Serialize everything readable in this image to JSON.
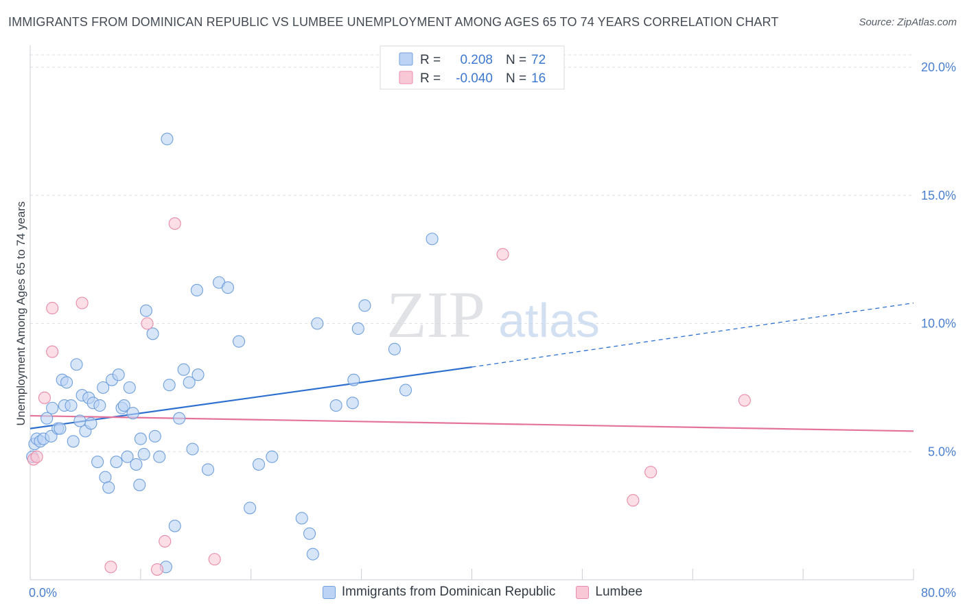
{
  "header": {
    "title": "IMMIGRANTS FROM DOMINICAN REPUBLIC VS LUMBEE UNEMPLOYMENT AMONG AGES 65 TO 74 YEARS CORRELATION CHART",
    "source": "Source: ZipAtlas.com"
  },
  "watermark": {
    "zip": "ZIP",
    "atlas": "atlas"
  },
  "colors": {
    "blue_fill": "#bcd3f5",
    "blue_stroke": "#6f9fdc",
    "blue_line": "#2c6fcf",
    "pink_fill": "#f8c8d6",
    "pink_stroke": "#e88aa8",
    "pink_line": "#e4739a",
    "axis_text": "#4a7fd0",
    "grid": "#dcdfe4"
  },
  "stats_legend": {
    "rows": [
      {
        "r_label": "R =",
        "r_value": "0.208",
        "n_label": "N =",
        "n_value": "72"
      },
      {
        "r_label": "R =",
        "r_value": "-0.040",
        "n_label": "N =",
        "n_value": "16"
      }
    ]
  },
  "bottom_legend": {
    "items": [
      {
        "label": "Immigrants from Dominican Republic"
      },
      {
        "label": "Lumbee"
      }
    ]
  },
  "chart_data": {
    "type": "scatter",
    "title": "IMMIGRANTS FROM DOMINICAN REPUBLIC VS LUMBEE UNEMPLOYMENT AMONG AGES 65 TO 74 YEARS CORRELATION CHART",
    "xlabel": "",
    "ylabel": "Unemployment Among Ages 65 to 74 years",
    "xlim": [
      0,
      80
    ],
    "ylim": [
      0,
      20
    ],
    "x_tick_labels": [
      {
        "value": 0,
        "label": "0.0%"
      },
      {
        "value": 80,
        "label": "80.0%"
      }
    ],
    "y_tick_labels": [
      {
        "value": 5,
        "label": "5.0%"
      },
      {
        "value": 10,
        "label": "10.0%"
      },
      {
        "value": 15,
        "label": "15.0%"
      },
      {
        "value": 20,
        "label": "20.0%"
      }
    ],
    "grid": true,
    "legend_position": "top-center",
    "series": [
      {
        "name": "Immigrants from Dominican Republic",
        "color": "#bcd3f5",
        "r": 0.208,
        "n": 72,
        "trend": {
          "x": [
            0,
            40
          ],
          "y": [
            5.9,
            8.3
          ],
          "extended_to": [
            80,
            10.8
          ]
        },
        "points": [
          [
            0.2,
            4.8
          ],
          [
            0.4,
            5.3
          ],
          [
            0.6,
            5.5
          ],
          [
            0.9,
            5.4
          ],
          [
            1.2,
            5.5
          ],
          [
            1.5,
            6.3
          ],
          [
            1.9,
            5.6
          ],
          [
            2.0,
            6.7
          ],
          [
            2.5,
            5.9
          ],
          [
            2.7,
            5.9
          ],
          [
            2.9,
            7.8
          ],
          [
            3.1,
            6.8
          ],
          [
            3.3,
            7.7
          ],
          [
            3.7,
            6.8
          ],
          [
            3.9,
            5.4
          ],
          [
            4.2,
            8.4
          ],
          [
            4.5,
            6.2
          ],
          [
            4.7,
            7.2
          ],
          [
            5.0,
            5.8
          ],
          [
            5.3,
            7.1
          ],
          [
            5.5,
            6.1
          ],
          [
            5.7,
            6.9
          ],
          [
            6.1,
            4.6
          ],
          [
            6.3,
            6.8
          ],
          [
            6.6,
            7.5
          ],
          [
            6.8,
            4.0
          ],
          [
            7.1,
            3.6
          ],
          [
            7.4,
            7.8
          ],
          [
            7.8,
            4.6
          ],
          [
            8.0,
            8.0
          ],
          [
            8.3,
            6.7
          ],
          [
            8.5,
            6.8
          ],
          [
            8.8,
            4.8
          ],
          [
            9.0,
            7.5
          ],
          [
            9.3,
            6.5
          ],
          [
            9.6,
            4.5
          ],
          [
            10.0,
            5.5
          ],
          [
            9.9,
            3.7
          ],
          [
            10.3,
            4.9
          ],
          [
            10.5,
            10.5
          ],
          [
            11.1,
            9.6
          ],
          [
            11.3,
            5.6
          ],
          [
            11.7,
            4.8
          ],
          [
            12.3,
            0.5
          ],
          [
            12.4,
            17.2
          ],
          [
            12.6,
            7.6
          ],
          [
            13.1,
            2.1
          ],
          [
            13.5,
            6.3
          ],
          [
            13.9,
            8.2
          ],
          [
            14.4,
            7.7
          ],
          [
            14.7,
            5.1
          ],
          [
            15.1,
            11.3
          ],
          [
            15.2,
            8.0
          ],
          [
            16.1,
            4.3
          ],
          [
            17.1,
            11.6
          ],
          [
            17.9,
            11.4
          ],
          [
            18.9,
            9.3
          ],
          [
            19.9,
            2.8
          ],
          [
            20.7,
            4.5
          ],
          [
            21.9,
            4.8
          ],
          [
            24.6,
            2.4
          ],
          [
            25.3,
            1.8
          ],
          [
            25.6,
            1.0
          ],
          [
            26.0,
            10.0
          ],
          [
            27.7,
            6.8
          ],
          [
            29.2,
            6.9
          ],
          [
            29.3,
            7.8
          ],
          [
            29.7,
            9.8
          ],
          [
            30.3,
            10.7
          ],
          [
            33.0,
            9.0
          ],
          [
            34.0,
            7.4
          ],
          [
            36.4,
            13.3
          ]
        ]
      },
      {
        "name": "Lumbee",
        "color": "#f8c8d6",
        "r": -0.04,
        "n": 16,
        "trend": {
          "x": [
            0,
            80
          ],
          "y": [
            6.4,
            5.8
          ]
        },
        "points": [
          [
            0.3,
            4.7
          ],
          [
            0.6,
            4.8
          ],
          [
            1.3,
            7.1
          ],
          [
            2.0,
            10.6
          ],
          [
            2.0,
            8.9
          ],
          [
            4.7,
            10.8
          ],
          [
            7.3,
            0.5
          ],
          [
            10.6,
            10.0
          ],
          [
            11.5,
            0.4
          ],
          [
            12.2,
            1.5
          ],
          [
            13.1,
            13.9
          ],
          [
            16.7,
            0.8
          ],
          [
            42.8,
            12.7
          ],
          [
            64.7,
            7.0
          ],
          [
            54.6,
            3.1
          ],
          [
            56.2,
            4.2
          ]
        ]
      }
    ]
  }
}
